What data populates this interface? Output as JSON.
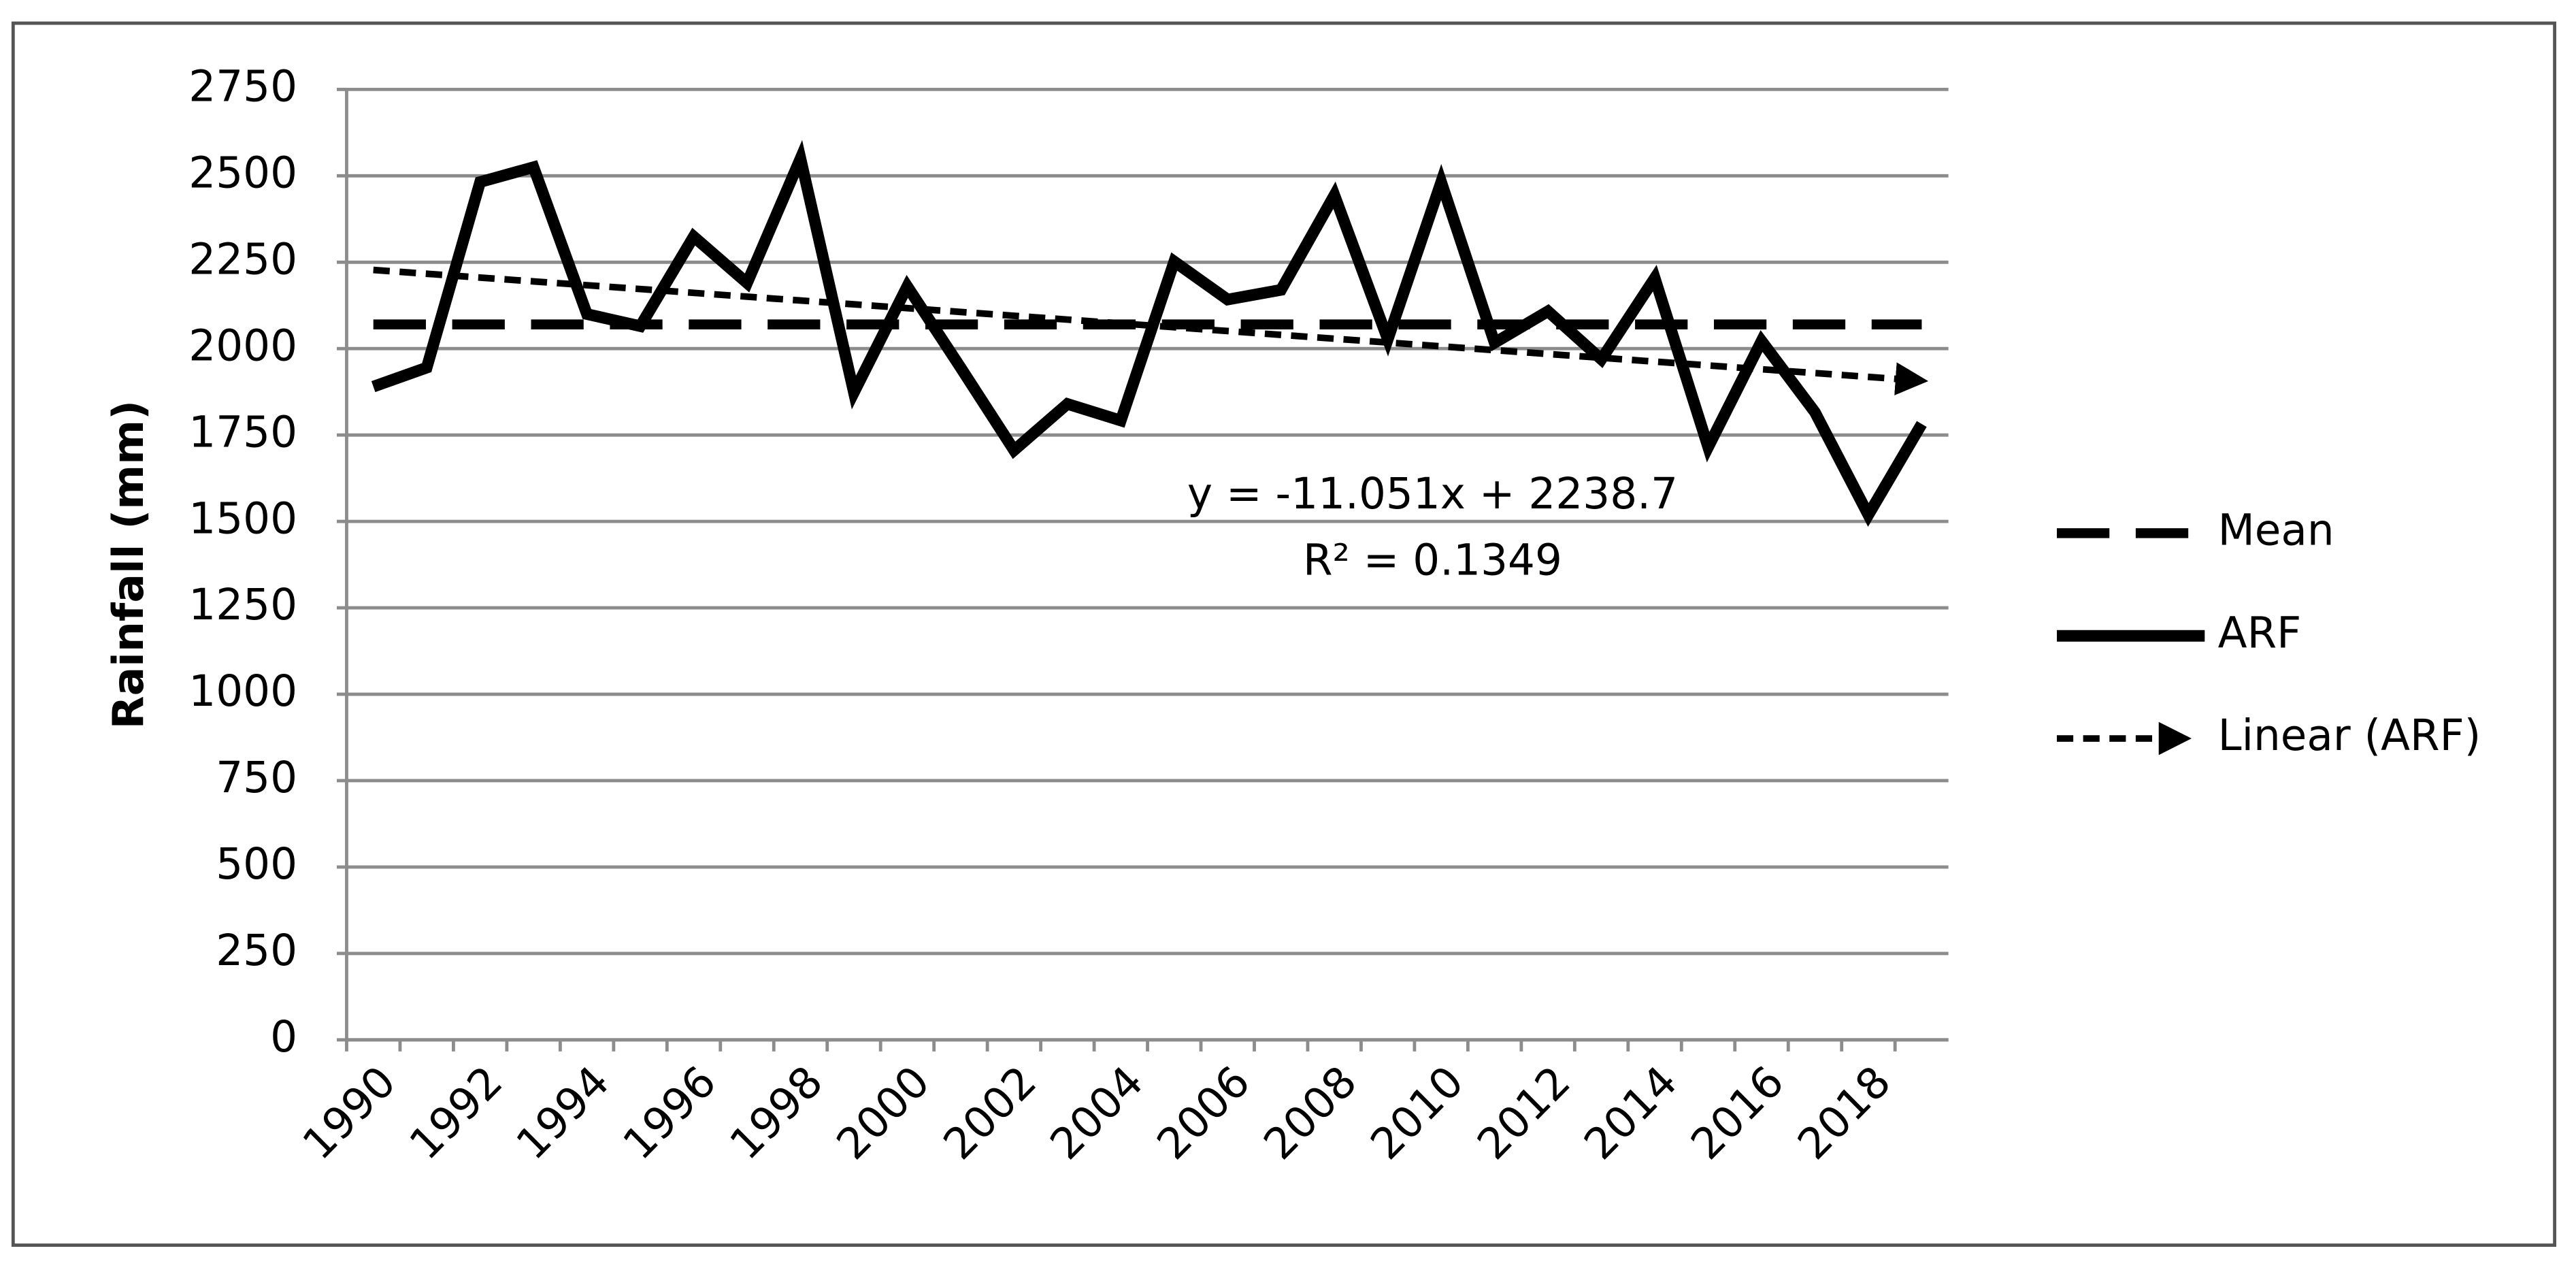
{
  "chart_data": {
    "type": "line",
    "ylabel": "Rainfall (mm)",
    "categories": [
      "1990",
      null,
      "1992",
      null,
      "1994",
      null,
      "1996",
      null,
      "1998",
      null,
      "2000",
      null,
      "2002",
      null,
      "2004",
      null,
      "2006",
      null,
      "2008",
      null,
      "2010",
      null,
      "2012",
      null,
      "2014",
      null,
      "2016",
      null,
      "2018",
      null
    ],
    "series": [
      {
        "name": "Mean",
        "color": "#000000",
        "dash": "long",
        "values": [
          2070,
          2070,
          2070,
          2070,
          2070,
          2070,
          2070,
          2070,
          2070,
          2070,
          2070,
          2070,
          2070,
          2070,
          2070,
          2070,
          2070,
          2070,
          2070,
          2070,
          2070,
          2070,
          2070,
          2070,
          2070,
          2070,
          2070,
          2070,
          2070,
          2070
        ]
      },
      {
        "name": "ARF",
        "color": "#000000",
        "dash": "solid",
        "values": [
          1890,
          1945,
          2482,
          2525,
          2100,
          2065,
          2324,
          2190,
          2550,
          1873,
          2180,
          1945,
          1706,
          1840,
          1792,
          2252,
          2142,
          2170,
          2444,
          2027,
          2482,
          2017,
          2108,
          1969,
          2204,
          1715,
          2022,
          1816,
          1519,
          1782
        ]
      },
      {
        "name": "Linear (ARF)",
        "color": "#000000",
        "dash": "short",
        "arrow": true,
        "values": [
          2227.649,
          2216.598,
          2205.547,
          2194.496,
          2183.445,
          2172.394,
          2161.343,
          2150.292,
          2139.241,
          2128.19,
          2117.139,
          2106.088,
          2095.037,
          2083.986,
          2072.935,
          2061.884,
          2050.833,
          2039.782,
          2028.731,
          2017.68,
          2006.629,
          1995.578,
          1984.527,
          1973.476,
          1962.425,
          1951.374,
          1940.323,
          1929.272,
          1918.221,
          1907.17
        ]
      }
    ],
    "annotations": [
      "y = -11.051x + 2238.7",
      "R² = 0.1349"
    ],
    "ylim": [
      0,
      2750
    ],
    "yticks": [
      0,
      250,
      500,
      750,
      1000,
      1250,
      1500,
      1750,
      2000,
      2250,
      2500,
      2750
    ],
    "grid": true,
    "legend": "right"
  }
}
